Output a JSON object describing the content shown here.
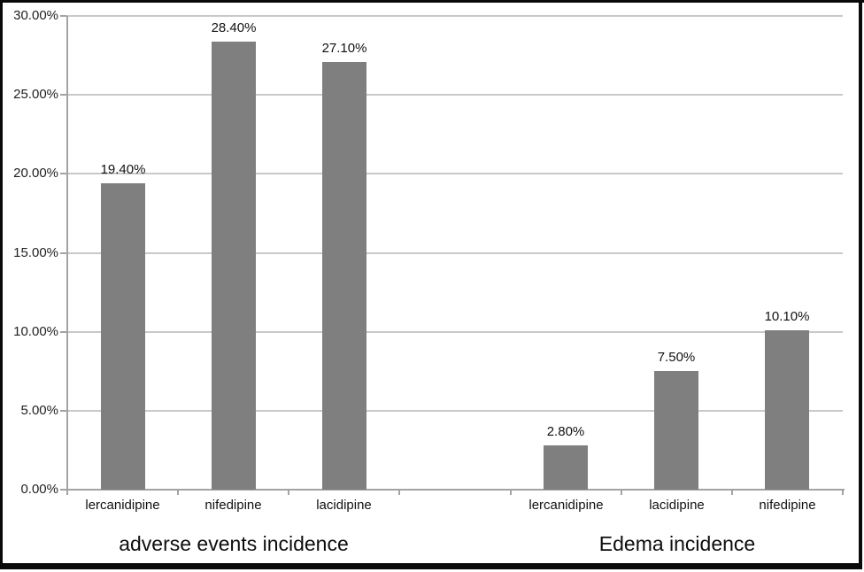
{
  "chart_data": {
    "type": "bar",
    "title": "",
    "xlabel": "",
    "ylabel": "",
    "ylim": [
      0,
      30
    ],
    "yticks": [
      0,
      5,
      10,
      15,
      20,
      25,
      30
    ],
    "ytick_labels": [
      "0.00%",
      "5.00%",
      "10.00%",
      "15.00%",
      "20.00%",
      "25.00%",
      "30.00%"
    ],
    "grid": true,
    "legend": "none",
    "bar_color": "#7f7f7f",
    "gridline_color": "#c9c9c9",
    "axis_color": "#a3a3a3",
    "border_color": "#0a0a0a",
    "groups": [
      {
        "label": "adverse events incidence",
        "categories": [
          "lercanidipine",
          "nifedipine",
          "lacidipine"
        ],
        "values": [
          19.4,
          28.4,
          27.1
        ],
        "value_labels": [
          "19.40%",
          "28.40%",
          "27.10%"
        ]
      },
      {
        "label": "Edema incidence",
        "categories": [
          "lercanidipine",
          "lacidipine",
          "nifedipine"
        ],
        "values": [
          2.8,
          7.5,
          10.1
        ],
        "value_labels": [
          "2.80%",
          "7.50%",
          "10.10%"
        ]
      }
    ]
  }
}
